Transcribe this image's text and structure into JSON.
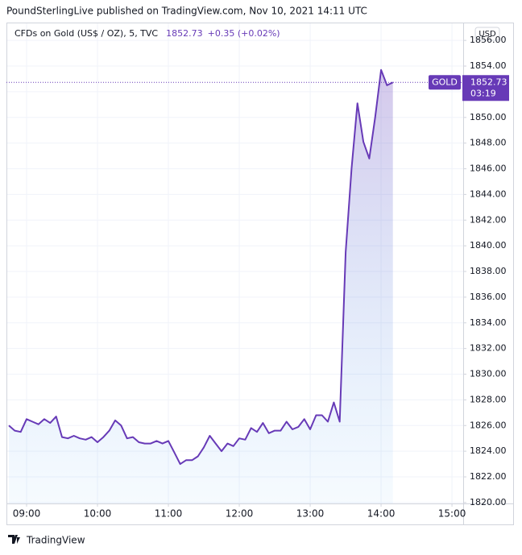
{
  "chart_data": {
    "type": "line",
    "header": "PoundSterlingLive published on TradingView.com, Nov 10, 2021 14:11 UTC",
    "legend_title": "CFDs on Gold (US$ / OZ), 5, TVC",
    "legend_price": "1852.73",
    "legend_change": "+0.35 (+0.02%)",
    "currency": "USD",
    "symbol": "GOLD",
    "countdown": "03:19",
    "footer": "TradingView",
    "x": [
      525,
      530,
      535,
      540,
      545,
      550,
      555,
      560,
      565,
      570,
      575,
      580,
      585,
      590,
      595,
      600,
      605,
      610,
      615,
      620,
      625,
      630,
      635,
      640,
      645,
      650,
      655,
      660,
      665,
      670,
      675,
      680,
      685,
      690,
      695,
      700,
      705,
      710,
      715,
      720,
      725,
      730,
      735,
      740,
      745,
      750,
      755,
      760,
      765,
      770,
      775,
      780,
      785,
      790,
      795,
      800,
      805,
      810,
      815,
      820,
      825,
      830,
      835,
      840,
      845,
      850
    ],
    "series": [
      {
        "name": "GOLD",
        "color": "#673ab7",
        "values": [
          1826.0,
          1825.6,
          1825.5,
          1826.5,
          1826.3,
          1826.1,
          1826.5,
          1826.2,
          1826.7,
          1825.1,
          1825.0,
          1825.2,
          1825.0,
          1824.9,
          1825.1,
          1824.7,
          1825.1,
          1825.6,
          1826.4,
          1826.0,
          1825.0,
          1825.1,
          1824.7,
          1824.6,
          1824.6,
          1824.8,
          1824.6,
          1824.8,
          1823.9,
          1823.0,
          1823.3,
          1823.3,
          1823.6,
          1824.3,
          1825.2,
          1824.6,
          1824.0,
          1824.6,
          1824.4,
          1825.0,
          1824.9,
          1825.8,
          1825.5,
          1826.2,
          1825.4,
          1825.6,
          1825.6,
          1826.3,
          1825.7,
          1825.9,
          1826.5,
          1825.7,
          1826.8,
          1826.8,
          1826.3,
          1827.8,
          1826.3,
          1839.5,
          1846.0,
          1851.1,
          1848.1,
          1846.8,
          1850.0,
          1853.7,
          1852.5,
          1852.73
        ]
      }
    ],
    "xlim": [
      522.95,
      909.5
    ],
    "xticks": [
      {
        "value": 540,
        "label": "09:00"
      },
      {
        "value": 600,
        "label": "10:00"
      },
      {
        "value": 660,
        "label": "11:00"
      },
      {
        "value": 720,
        "label": "12:00"
      },
      {
        "value": 780,
        "label": "13:00"
      },
      {
        "value": 840,
        "label": "14:00"
      },
      {
        "value": 900,
        "label": "15:00"
      }
    ],
    "ylim": [
      1819.93,
      1857.39
    ],
    "yticks": [
      {
        "value": 1820,
        "label": "1820.00"
      },
      {
        "value": 1822,
        "label": "1822.00"
      },
      {
        "value": 1824,
        "label": "1824.00"
      },
      {
        "value": 1826,
        "label": "1826.00"
      },
      {
        "value": 1828,
        "label": "1828.00"
      },
      {
        "value": 1830,
        "label": "1830.00"
      },
      {
        "value": 1832,
        "label": "1832.00"
      },
      {
        "value": 1834,
        "label": "1834.00"
      },
      {
        "value": 1836,
        "label": "1836.00"
      },
      {
        "value": 1838,
        "label": "1838.00"
      },
      {
        "value": 1840,
        "label": "1840.00"
      },
      {
        "value": 1842,
        "label": "1842.00"
      },
      {
        "value": 1844,
        "label": "1844.00"
      },
      {
        "value": 1846,
        "label": "1846.00"
      },
      {
        "value": 1848,
        "label": "1848.00"
      },
      {
        "value": 1850,
        "label": "1850.00"
      },
      {
        "value": 1852,
        "label": "1852.00"
      },
      {
        "value": 1854,
        "label": "1854.00"
      },
      {
        "value": 1856,
        "label": "1856.00"
      }
    ],
    "grid": true
  }
}
